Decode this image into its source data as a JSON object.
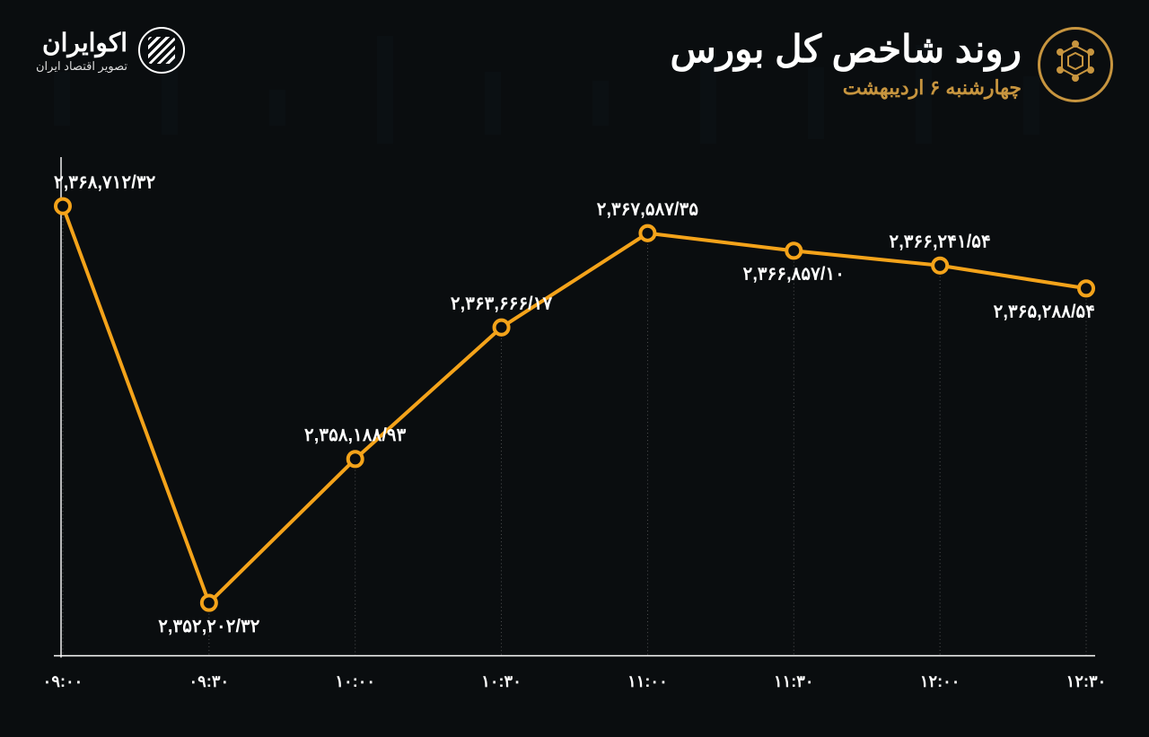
{
  "brand": {
    "name": "اکوایران",
    "tagline": "تصویر اقتصاد ایران"
  },
  "header": {
    "title": "روند شاخص کل بورس",
    "date": "چهارشنبه ۶ اردیبهشت",
    "date_color": "#c7953f"
  },
  "chart": {
    "type": "line",
    "background_color": "#0a0d0f",
    "line_color": "#f4a31a",
    "marker_fill": "#0a0d0f",
    "marker_stroke": "#f4a31a",
    "marker_radius": 8,
    "line_width": 4,
    "axis_color": "#ffffff",
    "gridline_color": "#888888",
    "label_color": "#ffffff",
    "label_fontsize": 20,
    "xlabel_fontsize": 18,
    "ylim": [
      2350000,
      2370000
    ],
    "x_labels": [
      "۰۹:۰۰",
      "۰۹:۳۰",
      "۱۰:۰۰",
      "۱۰:۳۰",
      "۱۱:۰۰",
      "۱۱:۳۰",
      "۱۲:۰۰",
      "۱۲:۳۰"
    ],
    "values": [
      2368712.32,
      2352202.32,
      2358188.93,
      2363666.17,
      2367587.35,
      2366857.1,
      2366241.54,
      2365288.54
    ],
    "value_labels": [
      "۲,۳۶۸,۷۱۲/۳۲",
      "۲,۳۵۲,۲۰۲/۳۲",
      "۲,۳۵۸,۱۸۸/۹۳",
      "۲,۳۶۳,۶۶۶/۱۷",
      "۲,۳۶۷,۵۸۷/۳۵",
      "۲,۳۶۶,۸۵۷/۱۰",
      "۲,۳۶۶,۲۴۱/۵۴",
      "۲,۳۶۵,۲۸۸/۵۴"
    ],
    "label_placement": [
      "above",
      "below",
      "above",
      "above",
      "above",
      "below",
      "above",
      "below"
    ]
  }
}
